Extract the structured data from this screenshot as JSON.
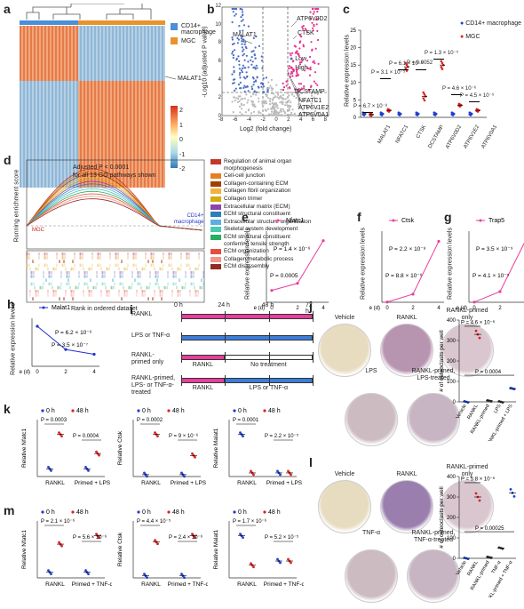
{
  "panels": {
    "a": {
      "label": "a",
      "legend": [
        "CD14+ macrophage",
        "MGC"
      ],
      "annotation": "MALAT1",
      "colorbar_ticks": [
        "2",
        "1",
        "0",
        "-1",
        "-2"
      ]
    },
    "b": {
      "label": "b",
      "ylabel": "-Log10 (adjusted P value)",
      "xlabel": "Log2 (fold change)",
      "xticks": [
        "-8",
        "-6",
        "-4",
        "-2",
        "0",
        "2",
        "4",
        "6",
        "8"
      ],
      "yticks": [
        "0",
        "2",
        "4",
        "6",
        "8",
        "10",
        "12"
      ],
      "legend": [
        "Low",
        "High"
      ],
      "genes": [
        "MALAT1",
        "ATP6V0D2",
        "CTSK",
        "DCSTAMP",
        "NFATC1",
        "ATP6V1E2",
        "ATP6V0A1"
      ]
    },
    "c": {
      "label": "c",
      "ylabel": "Relative expression levels",
      "yticks": [
        "0",
        "5",
        "10",
        "15",
        "20",
        "25"
      ],
      "legend": [
        "CD14+ macrophage",
        "MGC"
      ],
      "genes": [
        "MALAT1",
        "NFATC1",
        "CTSK",
        "DCSTAMP",
        "ATP6V0D2",
        "ATP6V1E2",
        "ATP6V0A1"
      ],
      "pvals": [
        "P = 6.7 × 10⁻⁸",
        "P = 3.1 × 10⁻⁵",
        "P = 6.1 × 10⁻⁸",
        "P = 0.0052",
        "P = 1.3 × 10⁻⁵",
        "P = 4.6 × 10⁻⁶",
        "P = 4.5 × 10⁻⁵"
      ]
    },
    "d": {
      "label": "d",
      "ylabel": "Running enrichment score",
      "xlabel": "Rank in ordered dataset",
      "annotation": "Adjusted P < 0.0001\nfor all 13 GO pathways shown",
      "tag_top": "CD14+\nmacrophage",
      "tag_bottom": "MGC",
      "pathways": [
        {
          "name": "Regulation of animal organ morphogenesis",
          "color": "#c0392b"
        },
        {
          "name": "Cell-cell junction",
          "color": "#e67e22"
        },
        {
          "name": "Collagen-containing ECM",
          "color": "#a04000"
        },
        {
          "name": "Collagen fibril organization",
          "color": "#f5b041"
        },
        {
          "name": "Collagen trimer",
          "color": "#d4ac0d"
        },
        {
          "name": "Extracellular matrix (ECM)",
          "color": "#8e44ad"
        },
        {
          "name": "ECM structural constituent",
          "color": "#2980b9"
        },
        {
          "name": "Extracellular structure organization",
          "color": "#5dade2"
        },
        {
          "name": "Skeletal system development",
          "color": "#48c9b0"
        },
        {
          "name": "ECM structural constituent conferring tensile strength",
          "color": "#27ae60"
        },
        {
          "name": "ECM organization",
          "color": "#e74c3c"
        },
        {
          "name": "Collagen metabolic process",
          "color": "#f1948a"
        },
        {
          "name": "ECM disassembly",
          "color": "#922b21"
        }
      ]
    },
    "e": {
      "label": "e",
      "gene": "Nfatc1",
      "ylabel": "Relative expression levels",
      "xlabel": "Time (d)",
      "xticks": [
        "0",
        "2",
        "4"
      ],
      "p1": "P = 0.0005",
      "p2": "P = 1.4 × 10⁻⁶",
      "chart_data": {
        "type": "line",
        "x": [
          0,
          2,
          4
        ],
        "values": [
          1,
          1.6,
          5.2
        ],
        "ylim": [
          0,
          6
        ]
      }
    },
    "f": {
      "label": "f",
      "gene": "Ctsk",
      "ylabel": "Relative expression levels",
      "xlabel": "Time (d)",
      "xticks": [
        "0",
        "2",
        "4"
      ],
      "p1": "P = 8.8 × 10⁻⁶",
      "p2": "P = 2.2 × 10⁻⁸",
      "chart_data": {
        "type": "line",
        "x": [
          0,
          2,
          4
        ],
        "values": [
          1,
          40,
          300
        ],
        "ylim": [
          0,
          350
        ]
      }
    },
    "g": {
      "label": "g",
      "gene": "Trap5",
      "ylabel": "Relative expression levels",
      "xlabel": "Time (d)",
      "xticks": [
        "0",
        "2",
        "4"
      ],
      "p1": "P = 4.1 × 10⁻⁵",
      "p2": "P = 3.5 × 10⁻⁹",
      "chart_data": {
        "type": "line",
        "x": [
          0,
          2,
          4
        ],
        "values": [
          1,
          60,
          350
        ],
        "ylim": [
          0,
          400
        ]
      }
    },
    "h": {
      "label": "h",
      "gene": "Malat1",
      "ylabel": "Relative expression levels",
      "xlabel": "Time (d)",
      "xticks": [
        "0",
        "2",
        "4"
      ],
      "p1": "P = 6.2 × 10⁻⁶",
      "p2": "P = 3.5 × 10⁻⁷",
      "chart_data": {
        "type": "line",
        "x": [
          0,
          2,
          4
        ],
        "values": [
          1.0,
          0.42,
          0.3
        ],
        "ylim": [
          0,
          1.2
        ]
      }
    },
    "i": {
      "label": "i",
      "times": [
        "0 h",
        "24 h",
        "48 h",
        "72 h"
      ],
      "rows": [
        {
          "label": "RANKL",
          "segments": [
            {
              "text": "",
              "color": "#e83e9b",
              "span": 1
            }
          ]
        },
        {
          "label": "LPS or TNF-α",
          "segments": [
            {
              "text": "",
              "color": "#3b7dd8",
              "span": 1
            }
          ]
        },
        {
          "label": "RANKL-\nprimed only",
          "segments": [
            {
              "text": "RANKL",
              "color": "#e83e9b",
              "span": 0.33
            },
            {
              "text": "No treatment",
              "color": "#ffffff",
              "span": 0.67
            }
          ]
        },
        {
          "label": "RANKL-primed,\nLPS- or TNF-α-\ntreated",
          "segments": [
            {
              "text": "RANKL",
              "color": "#e83e9b",
              "span": 0.33
            },
            {
              "text": "LPS or TNF-α",
              "color": "#3b7dd8",
              "span": 0.67
            }
          ]
        }
      ]
    },
    "j": {
      "label": "j",
      "dishes": [
        "Vehicle",
        "RANKL",
        "RANKL-primed\nonly",
        "LPS",
        "RANKL-primed,\nLPS-treated"
      ],
      "ylabel": "# of osteoclasts per well",
      "p1": "P = 4.6 × 10⁻⁶",
      "p2": "P = 0.0004",
      "categories": [
        "Vehicle",
        "RANKL",
        "RANKL-primed",
        "LPS",
        "RANKL-primed + LPS"
      ],
      "chart_data": {
        "type": "scatter",
        "categories": [
          "Vehicle",
          "RANKL",
          "RANKL-primed",
          "LPS",
          "RANKL-primed + LPS"
        ],
        "values": [
          0,
          330,
          5,
          0,
          65
        ],
        "ylim": [
          0,
          400
        ]
      },
      "yticks": [
        "0",
        "100",
        "200",
        "300",
        "400"
      ]
    },
    "k": {
      "label": "k",
      "legend": [
        "0 h",
        "48 h"
      ],
      "xcats": [
        "RANKL",
        "Primed + LPS"
      ],
      "plots": [
        {
          "ylabel": "Relative Nfatc1",
          "p1": "P = 0.0003",
          "p2": "P = 0.0004"
        },
        {
          "ylabel": "Relative Ctsk",
          "p1": "P = 0.0002",
          "p2": "P = 9 × 10⁻⁶"
        },
        {
          "ylabel": "Relative Malat1",
          "p1": "P = 0.0001",
          "p2": "P = 2.2 × 10⁻⁵"
        }
      ]
    },
    "l": {
      "label": "l",
      "dishes": [
        "Vehicle",
        "RANKL",
        "RANKL-primed\nonly",
        "TNF-α",
        "RANKL-primed,\nTNF-α-treated"
      ],
      "ylabel": "# of osteoclasts per well",
      "p1": "P = 5.8 × 10⁻⁶",
      "p2": "P = 0.00025",
      "categories": [
        "Vehicle",
        "RANKL",
        "RANKL-primed",
        "TNF-α",
        "RANKL-primed + TNF-α"
      ],
      "chart_data": {
        "type": "scatter",
        "categories": [
          "Vehicle",
          "RANKL",
          "RANKL-primed",
          "TNF-α",
          "RANKL-primed + TNF-α"
        ],
        "values": [
          0,
          300,
          5,
          50,
          320
        ],
        "ylim": [
          0,
          400
        ]
      },
      "yticks": [
        "0",
        "100",
        "200",
        "300",
        "400"
      ]
    },
    "m": {
      "label": "m",
      "legend": [
        "0 h",
        "48 h"
      ],
      "xcats": [
        "RANKL",
        "Primed + TNF-α"
      ],
      "plots": [
        {
          "ylabel": "Relative Nfatc1",
          "p1": "P = 2.1 × 10⁻⁶",
          "p2": "P = 5.6 × 10⁻⁶"
        },
        {
          "ylabel": "Relative Ctsk",
          "p1": "P = 4.4 × 10⁻⁵",
          "p2": "P = 2.4 × 10⁻⁶"
        },
        {
          "ylabel": "Relative Malat1",
          "p1": "P = 1.7 × 10⁻⁶",
          "p2": "P = 5.2 × 10⁻⁵"
        }
      ]
    }
  }
}
